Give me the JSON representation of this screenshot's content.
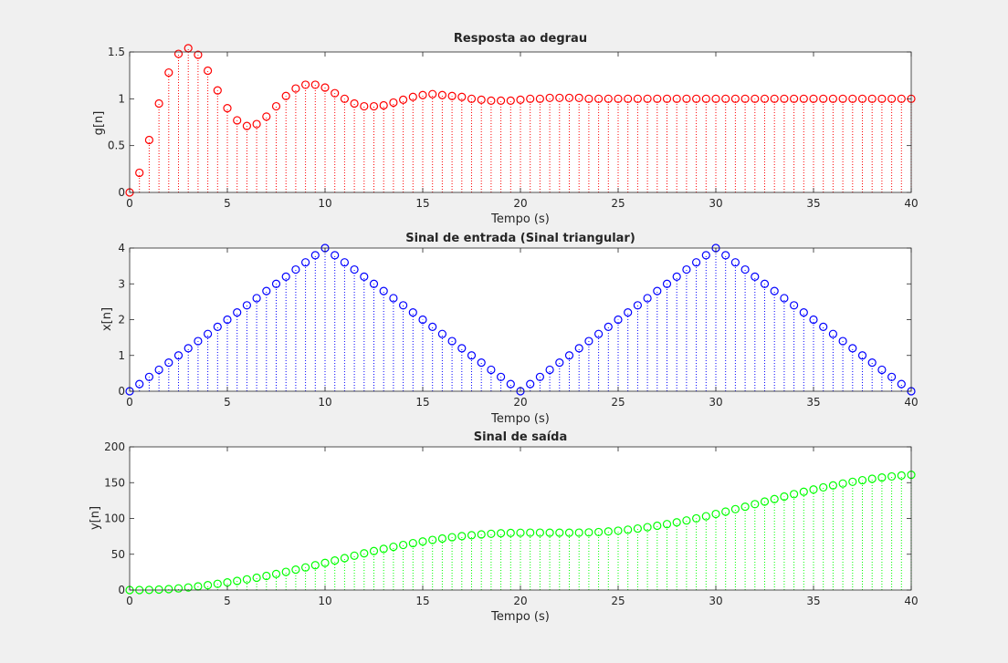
{
  "chart_data": [
    {
      "type": "stem",
      "title": "Resposta ao degrau",
      "xlabel": "Tempo (s)",
      "ylabel": "g[n]",
      "xlim": [
        0,
        40
      ],
      "ylim": [
        0,
        1.5
      ],
      "xticks": [
        0,
        5,
        10,
        15,
        20,
        25,
        30,
        35,
        40
      ],
      "yticks": [
        0,
        0.5,
        1,
        1.5
      ],
      "ytick_labels": [
        "0",
        "0.5",
        "1",
        "1.5"
      ],
      "color": "#ff0000",
      "step": 0.5,
      "values": [
        0,
        0.21,
        0.56,
        0.95,
        1.28,
        1.48,
        1.54,
        1.47,
        1.3,
        1.09,
        0.9,
        0.77,
        0.71,
        0.73,
        0.81,
        0.92,
        1.03,
        1.11,
        1.15,
        1.15,
        1.12,
        1.06,
        1.0,
        0.95,
        0.92,
        0.92,
        0.93,
        0.96,
        0.99,
        1.02,
        1.04,
        1.05,
        1.04,
        1.03,
        1.02,
        1.0,
        0.99,
        0.98,
        0.98,
        0.98,
        0.99,
        1.0,
        1.0,
        1.01,
        1.01,
        1.01,
        1.01,
        1.0,
        1.0,
        1.0,
        1.0,
        1.0,
        1.0,
        1.0,
        1.0,
        1.0,
        1.0,
        1.0,
        1.0,
        1.0,
        1.0,
        1.0,
        1.0,
        1.0,
        1.0,
        1.0,
        1.0,
        1.0,
        1.0,
        1.0,
        1.0,
        1.0,
        1.0,
        1.0,
        1.0,
        1.0,
        1.0,
        1.0,
        1.0,
        1.0,
        1.0
      ]
    },
    {
      "type": "stem",
      "title": "Sinal de entrada (Sinal triangular)",
      "xlabel": "Tempo (s)",
      "ylabel": "x[n]",
      "xlim": [
        0,
        40
      ],
      "ylim": [
        0,
        4
      ],
      "xticks": [
        0,
        5,
        10,
        15,
        20,
        25,
        30,
        35,
        40
      ],
      "yticks": [
        0,
        1,
        2,
        3,
        4
      ],
      "ytick_labels": [
        "0",
        "1",
        "2",
        "3",
        "4"
      ],
      "color": "#0000ff",
      "step": 0.5,
      "values": [
        0,
        0.2,
        0.4,
        0.6,
        0.8,
        1.0,
        1.2,
        1.4,
        1.6,
        1.8,
        2.0,
        2.2,
        2.4,
        2.6,
        2.8,
        3.0,
        3.2,
        3.4,
        3.6,
        3.8,
        4.0,
        3.8,
        3.6,
        3.4,
        3.2,
        3.0,
        2.8,
        2.6,
        2.4,
        2.2,
        2.0,
        1.8,
        1.6,
        1.4,
        1.2,
        1.0,
        0.8,
        0.6,
        0.4,
        0.2,
        0,
        0.2,
        0.4,
        0.6,
        0.8,
        1.0,
        1.2,
        1.4,
        1.6,
        1.8,
        2.0,
        2.2,
        2.4,
        2.6,
        2.8,
        3.0,
        3.2,
        3.4,
        3.6,
        3.8,
        4.0,
        3.8,
        3.6,
        3.4,
        3.2,
        3.0,
        2.8,
        2.6,
        2.4,
        2.2,
        2.0,
        1.8,
        1.6,
        1.4,
        1.2,
        1.0,
        0.8,
        0.6,
        0.4,
        0.2,
        0
      ]
    },
    {
      "type": "stem",
      "title": "Sinal de saída",
      "xlabel": "Tempo (s)",
      "ylabel": "y[n]",
      "xlim": [
        0,
        40
      ],
      "ylim": [
        0,
        200
      ],
      "xticks": [
        0,
        5,
        10,
        15,
        20,
        25,
        30,
        35,
        40
      ],
      "yticks": [
        0,
        50,
        100,
        150,
        200
      ],
      "ytick_labels": [
        "0",
        "50",
        "100",
        "150",
        "200"
      ],
      "color": "#00ff00",
      "step": 0.5,
      "values": [
        0,
        0.04,
        0.2,
        0.6,
        1.3,
        2.3,
        3.6,
        5.1,
        6.8,
        8.7,
        10.7,
        12.7,
        14.9,
        17.2,
        19.7,
        22.5,
        25.4,
        28.5,
        31.6,
        34.7,
        37.9,
        41.2,
        44.6,
        48.0,
        51.3,
        54.5,
        57.5,
        60.4,
        63.0,
        65.5,
        67.8,
        70.0,
        72.0,
        73.8,
        75.3,
        76.6,
        77.7,
        78.6,
        79.3,
        79.8,
        80.0,
        80.2,
        80.2,
        80.1,
        80.1,
        80.1,
        80.2,
        80.5,
        81.0,
        81.8,
        82.9,
        84.3,
        85.9,
        87.8,
        89.8,
        92.1,
        94.6,
        97.2,
        100.1,
        103.1,
        106.3,
        109.6,
        113.0,
        116.4,
        120.0,
        123.6,
        127.1,
        130.6,
        134.0,
        137.3,
        140.4,
        143.4,
        146.2,
        148.8,
        151.2,
        153.4,
        155.4,
        157.2,
        158.7,
        160.0,
        161.0
      ]
    }
  ]
}
